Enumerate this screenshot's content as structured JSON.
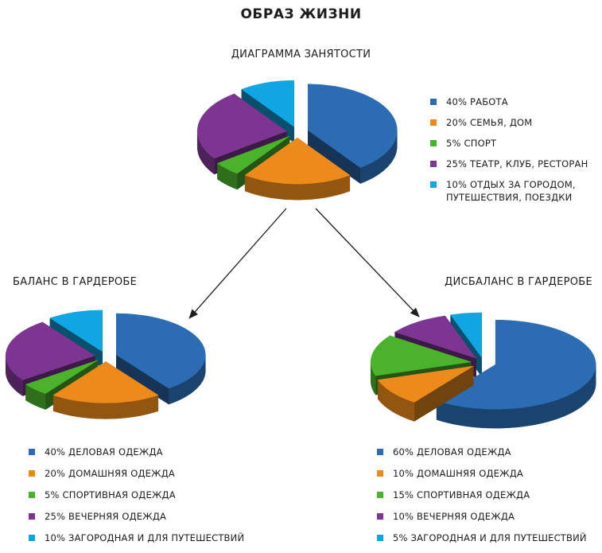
{
  "title": "ОБРАЗ ЖИЗНИ",
  "colors": {
    "blue": "#2b6cb3",
    "orange": "#ec8b1c",
    "green": "#4bb22c",
    "purple": "#7c3591",
    "cyan": "#10a6e3"
  },
  "chart_data": [
    {
      "type": "pie",
      "title": "ДИАГРАММА ЗАНЯТОСТИ",
      "exploded": true,
      "three_d": true,
      "slices": [
        {
          "label": "40% РАБОТА",
          "value": 40,
          "color": "#2b6cb3"
        },
        {
          "label": "20% СЕМЬЯ, ДОМ",
          "value": 20,
          "color": "#ec8b1c"
        },
        {
          "label": "5% СПОРТ",
          "value": 5,
          "color": "#4bb22c"
        },
        {
          "label": "25% ТЕАТР, КЛУБ, РЕСТОРАН",
          "value": 25,
          "color": "#7c3591"
        },
        {
          "label": "10% ОТДЫХ ЗА ГОРОДОМ, ПУТЕШЕСТВИЯ, ПОЕЗДКИ",
          "value": 10,
          "color": "#10a6e3"
        }
      ]
    },
    {
      "type": "pie",
      "title": "БАЛАНС В ГАРДЕРОБЕ",
      "exploded": true,
      "three_d": true,
      "slices": [
        {
          "label": "40% ДЕЛОВАЯ ОДЕЖДА",
          "value": 40,
          "color": "#2b6cb3"
        },
        {
          "label": "20% ДОМАШНЯЯ ОДЕЖДА",
          "value": 20,
          "color": "#ec8b1c"
        },
        {
          "label": "5% СПОРТИВНАЯ ОДЕЖДА",
          "value": 5,
          "color": "#4bb22c"
        },
        {
          "label": "25% ВЕЧЕРНЯЯ ОДЕЖДА",
          "value": 25,
          "color": "#7c3591"
        },
        {
          "label": "10% ЗАГОРОДНАЯ И ДЛЯ ПУТЕШЕСТВИЙ",
          "value": 10,
          "color": "#10a6e3"
        }
      ]
    },
    {
      "type": "pie",
      "title": "ДИСБАЛАНС В ГАРДЕРОБЕ",
      "exploded": true,
      "three_d": true,
      "slices": [
        {
          "label": "60% ДЕЛОВАЯ ОДЕЖДА",
          "value": 60,
          "color": "#2b6cb3"
        },
        {
          "label": "10% ДОМАШНЯЯ ОДЕЖДА",
          "value": 10,
          "color": "#ec8b1c"
        },
        {
          "label": "15% СПОРТИВНАЯ ОДЕЖДА",
          "value": 15,
          "color": "#4bb22c"
        },
        {
          "label": "10% ВЕЧЕРНЯЯ ОДЕЖДА",
          "value": 10,
          "color": "#7c3591"
        },
        {
          "label": "5% ЗАГОРОДНАЯ И ДЛЯ ПУТЕШЕСТВИЙ",
          "value": 5,
          "color": "#10a6e3"
        }
      ]
    }
  ]
}
